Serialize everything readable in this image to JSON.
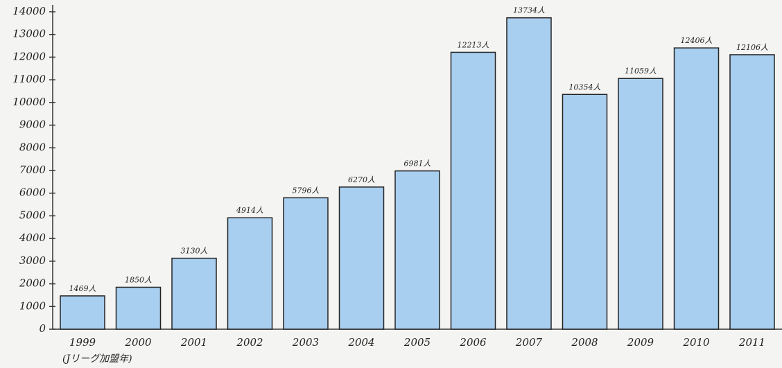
{
  "chart_data": {
    "type": "bar",
    "categories": [
      "1999",
      "2000",
      "2001",
      "2002",
      "2003",
      "2004",
      "2005",
      "2006",
      "2007",
      "2008",
      "2009",
      "2010",
      "2011"
    ],
    "values": [
      1469,
      1850,
      3130,
      4914,
      5796,
      6270,
      6981,
      12213,
      13734,
      10354,
      11059,
      12406,
      12106
    ],
    "value_labels": [
      "1469人",
      "1850人",
      "3130人",
      "4914人",
      "5796人",
      "6270人",
      "6981人",
      "12213人",
      "13734人",
      "10354人",
      "11059人",
      "12406人",
      "12106人"
    ],
    "annotation": "(Jリーグ加盟年)",
    "color": "#a9cff0",
    "ylim": [
      0,
      14000
    ],
    "yticks": [
      0,
      1000,
      2000,
      3000,
      4000,
      5000,
      6000,
      7000,
      8000,
      9000,
      10000,
      11000,
      12000,
      13000,
      14000
    ]
  }
}
